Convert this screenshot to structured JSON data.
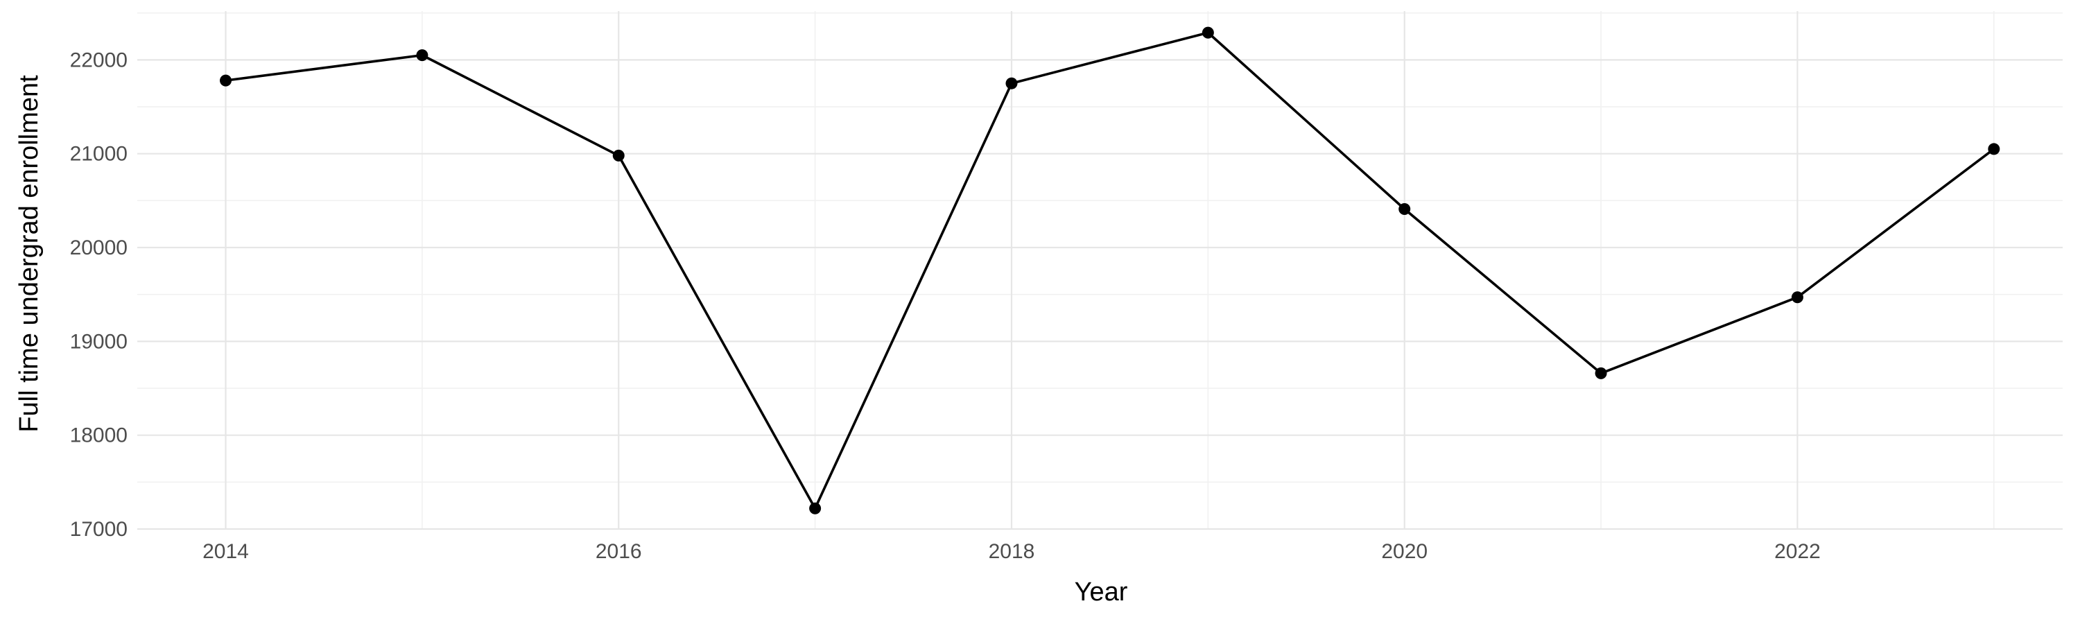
{
  "chart_data": {
    "type": "line",
    "title": "",
    "xlabel": "Year",
    "ylabel": "Full time undergrad enrollment",
    "x": [
      2014,
      2015,
      2016,
      2017,
      2018,
      2019,
      2020,
      2021,
      2022,
      2023
    ],
    "series": [
      {
        "values": [
          21780,
          22050,
          20980,
          17220,
          21750,
          22290,
          20410,
          18660,
          19470,
          21050
        ],
        "color": "#000000"
      }
    ],
    "xlim": [
      2013.55,
      2023.35
    ],
    "ylim": [
      17000,
      22520
    ],
    "x_ticks": [
      2014,
      2016,
      2018,
      2020,
      2022
    ],
    "x_tick_labels": [
      "2014",
      "2016",
      "2018",
      "2020",
      "2022"
    ],
    "y_ticks": [
      17000,
      18000,
      19000,
      20000,
      21000,
      22000
    ],
    "y_tick_labels": [
      "17000",
      "18000",
      "19000",
      "20000",
      "21000",
      "22000"
    ],
    "grid": true,
    "legend": "none",
    "colors": {
      "background": "#ffffff",
      "grid_major": "#e6e6e6",
      "grid_minor": "#f1f1f1",
      "tick_text": "#4d4d4d",
      "title_text": "#000000"
    }
  }
}
